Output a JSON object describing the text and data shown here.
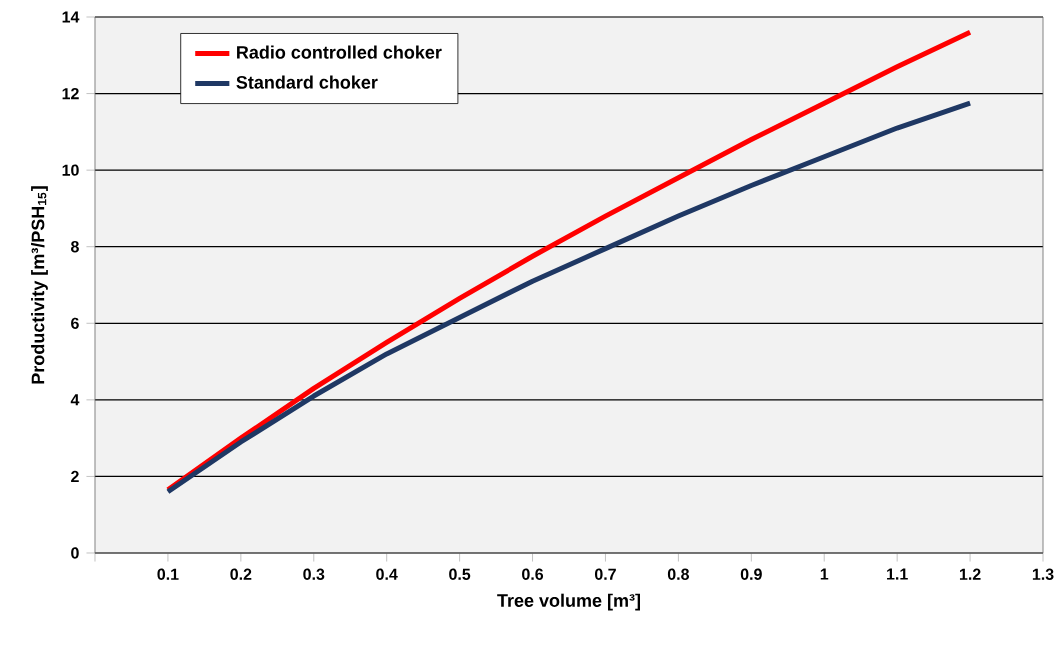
{
  "chart_data": {
    "type": "line",
    "xlabel": "Tree volume [m³]",
    "ylabel": "Productivity [m³/PSH$_{15}$]",
    "x": [
      0.1,
      0.2,
      0.3,
      0.4,
      0.5,
      0.6,
      0.7,
      0.8,
      0.9,
      1.0,
      1.1,
      1.2
    ],
    "series": [
      {
        "name": "Radio controlled choker",
        "color": "#ff0000",
        "values": [
          1.65,
          3.0,
          4.3,
          5.5,
          6.65,
          7.75,
          8.8,
          9.8,
          10.8,
          11.75,
          12.7,
          13.6
        ]
      },
      {
        "name": "Standard choker",
        "color": "#1f3864",
        "values": [
          1.6,
          2.9,
          4.1,
          5.2,
          6.15,
          7.1,
          7.95,
          8.8,
          9.6,
          10.35,
          11.1,
          11.75
        ]
      }
    ],
    "xlim": [
      0,
      1.3
    ],
    "ylim": [
      0,
      14
    ],
    "xticks": [
      {
        "value": 0,
        "label": null
      },
      0.1,
      0.2,
      0.3,
      0.4,
      0.5,
      0.6,
      0.7,
      0.8,
      0.9,
      1,
      1.1,
      1.2,
      1.3
    ],
    "yticks": [
      0,
      2,
      4,
      6,
      8,
      10,
      12,
      14
    ],
    "grid": "y",
    "legend": "top left",
    "marker": "none",
    "line_style": "solid"
  }
}
